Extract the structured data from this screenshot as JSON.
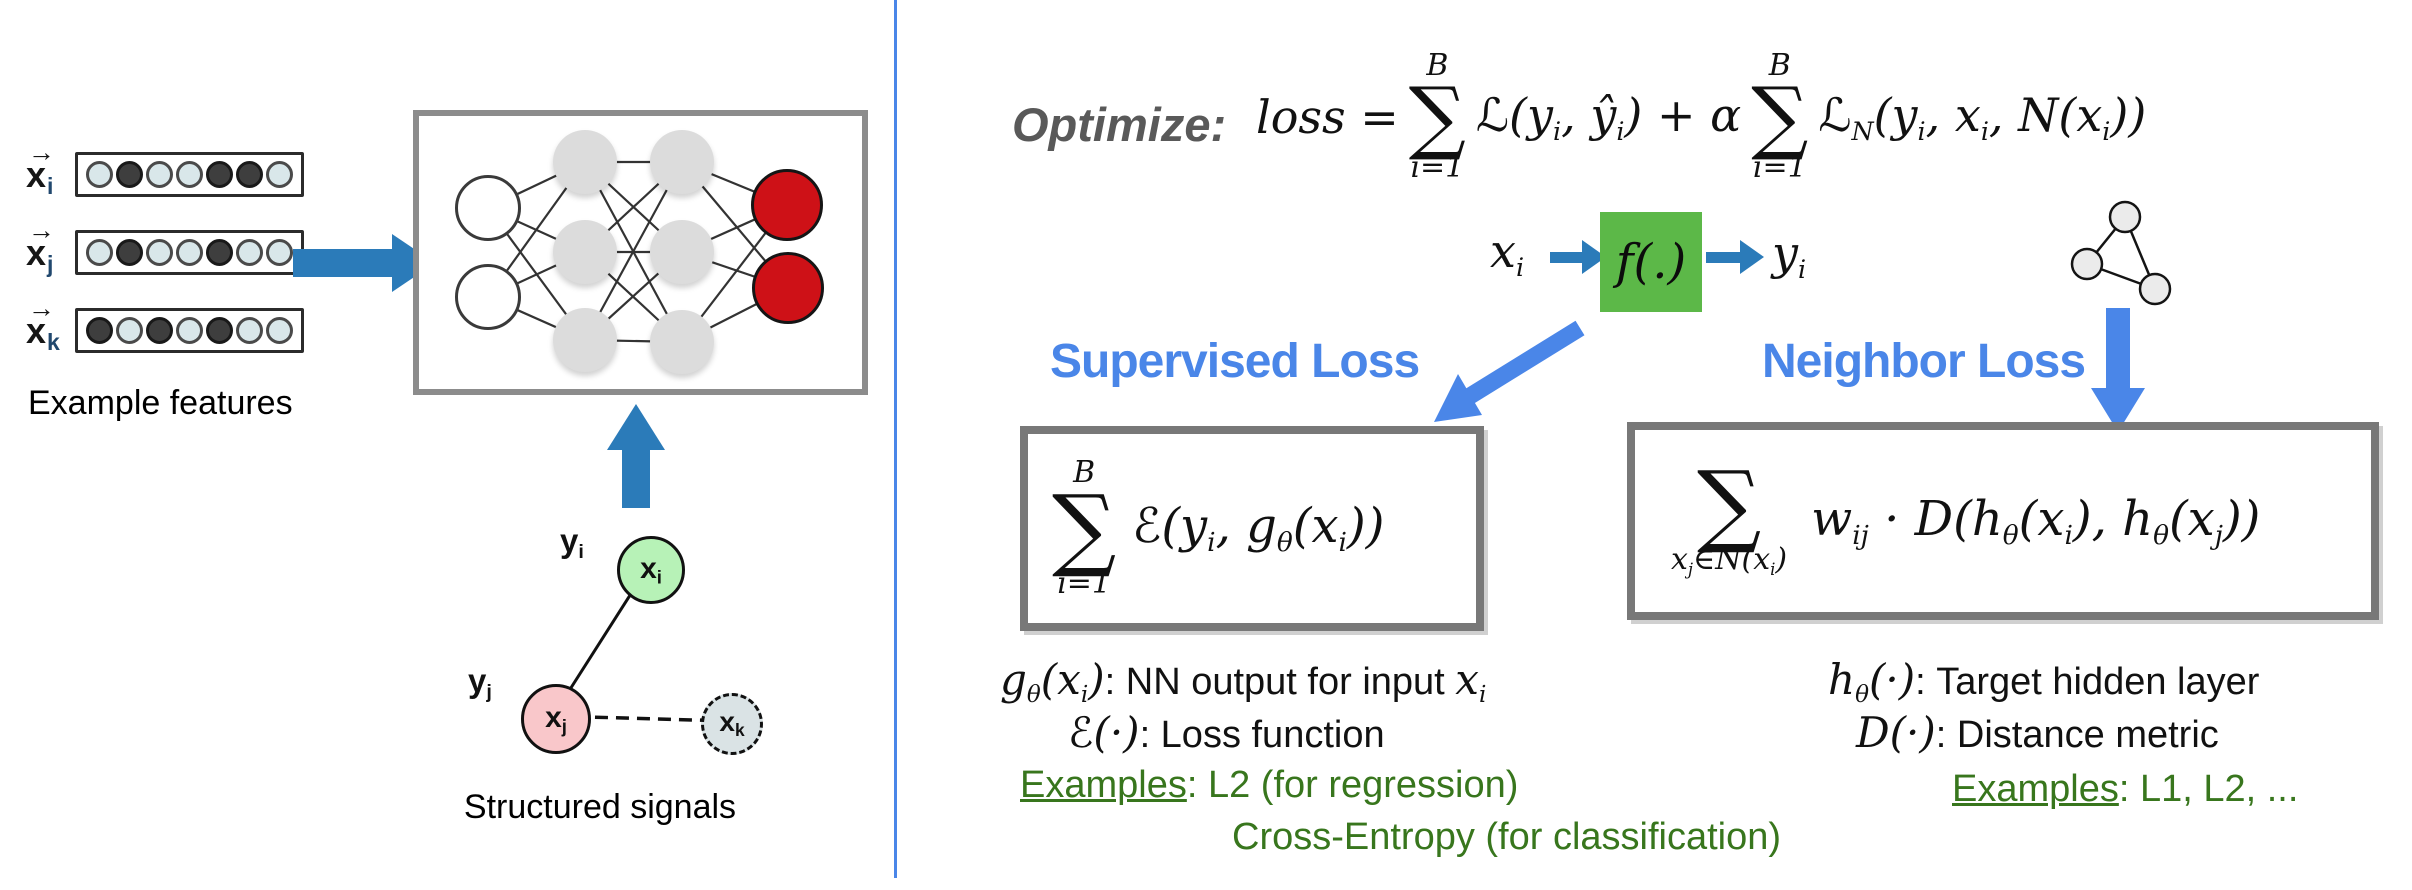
{
  "left": {
    "features": {
      "caption": "Example features",
      "rows": [
        {
          "variable": "x",
          "arrow": "→",
          "subscript": "i",
          "pattern": [
            0,
            1,
            0,
            0,
            1,
            1,
            0
          ]
        },
        {
          "variable": "x",
          "arrow": "→",
          "subscript": "j",
          "pattern": [
            0,
            1,
            0,
            0,
            1,
            0,
            0
          ]
        },
        {
          "variable": "x",
          "arrow": "→",
          "subscript": "k",
          "pattern": [
            1,
            0,
            1,
            0,
            1,
            0,
            0
          ]
        }
      ]
    },
    "signals": {
      "caption": "Structured signals",
      "node_xi": [
        {
          "t": "x"
        },
        {
          "t": "i",
          "s": "sub"
        }
      ],
      "node_xj": [
        {
          "t": "x"
        },
        {
          "t": "j",
          "s": "sub"
        }
      ],
      "node_xk": [
        {
          "t": "x"
        },
        {
          "t": "k",
          "s": "sub"
        }
      ],
      "label_yi": [
        {
          "t": "y"
        },
        {
          "t": "i",
          "s": "sub"
        }
      ],
      "label_yj": [
        {
          "t": "y"
        },
        {
          "t": "j",
          "s": "sub"
        }
      ]
    }
  },
  "right": {
    "optimize_label": "Optimize:",
    "formula": {
      "lhs": "loss =",
      "sum1": {
        "top": "B",
        "sym": "∑",
        "bot": "i=1"
      },
      "mid": [
        {
          "t": "ℒ(y"
        },
        {
          "t": "i",
          "s": "sub"
        },
        {
          "t": ", ŷ"
        },
        {
          "t": "i",
          "s": "sub"
        },
        {
          "t": ") + α"
        }
      ],
      "sum2": {
        "top": "B",
        "sym": "∑",
        "bot": "i=1"
      },
      "tail": [
        {
          "t": "ℒ"
        },
        {
          "t": "N",
          "s": "sub"
        },
        {
          "t": "(y"
        },
        {
          "t": "i",
          "s": "sub"
        },
        {
          "t": ", x"
        },
        {
          "t": "i",
          "s": "sub"
        },
        {
          "t": ", N(x"
        },
        {
          "t": "i",
          "s": "sub"
        },
        {
          "t": "))"
        }
      ]
    },
    "flow": {
      "input": [
        {
          "t": "x"
        },
        {
          "t": "i",
          "s": "sub"
        }
      ],
      "fn": "f(.)",
      "output": [
        {
          "t": "y"
        },
        {
          "t": "i",
          "s": "sub"
        }
      ]
    },
    "supervised": {
      "title": "Supervised Loss",
      "sum": {
        "top": "B",
        "sym": "∑",
        "bot": "i=1"
      },
      "body": [
        {
          "t": "ℰ(y"
        },
        {
          "t": "i",
          "s": "sub"
        },
        {
          "t": ", g"
        },
        {
          "t": "θ",
          "s": "sub"
        },
        {
          "t": "(x"
        },
        {
          "t": "i",
          "s": "sub"
        },
        {
          "t": "))"
        }
      ],
      "note1_math": [
        {
          "t": "g"
        },
        {
          "t": "θ",
          "s": "sub"
        },
        {
          "t": "(x"
        },
        {
          "t": "i",
          "s": "sub"
        },
        {
          "t": ")"
        }
      ],
      "note1_text": ": NN output for input ",
      "note1_tail": [
        {
          "t": "x"
        },
        {
          "t": "i",
          "s": "sub"
        }
      ],
      "note2_math": [
        {
          "t": "ℰ(·)"
        }
      ],
      "note2_text": ": Loss function",
      "examples_label": "Examples",
      "examples_text": ": L2 (for regression)",
      "examples_line2": "Cross-Entropy (for classification)"
    },
    "neighbor": {
      "title": "Neighbor Loss",
      "sum": {
        "sym": "∑",
        "bot": [
          {
            "t": "x"
          },
          {
            "t": "j",
            "s": "sub"
          },
          {
            "t": "∈N(x"
          },
          {
            "t": "i",
            "s": "sub"
          },
          {
            "t": ")"
          }
        ]
      },
      "body": [
        {
          "t": "w"
        },
        {
          "t": "ij",
          "s": "sub"
        },
        {
          "t": " · D(h"
        },
        {
          "t": "θ",
          "s": "sub"
        },
        {
          "t": "(x"
        },
        {
          "t": "i",
          "s": "sub"
        },
        {
          "t": "), h"
        },
        {
          "t": "θ",
          "s": "sub"
        },
        {
          "t": "(x"
        },
        {
          "t": "j",
          "s": "sub"
        },
        {
          "t": "))"
        }
      ],
      "note1_math": [
        {
          "t": "h"
        },
        {
          "t": "θ",
          "s": "sub"
        },
        {
          "t": "(·)"
        }
      ],
      "note1_text": ": Target hidden layer",
      "note2_math": [
        {
          "t": "D(·)"
        }
      ],
      "note2_text": ": Distance metric",
      "examples_label": "Examples",
      "examples_text": ": L1, L2, ..."
    },
    "colors": {
      "accent_blue": "#4a86e8",
      "steel_blue": "#2b7bb9",
      "green_box": "#5cb848",
      "green_text": "#38761d",
      "node_red": "#ce1117"
    }
  }
}
